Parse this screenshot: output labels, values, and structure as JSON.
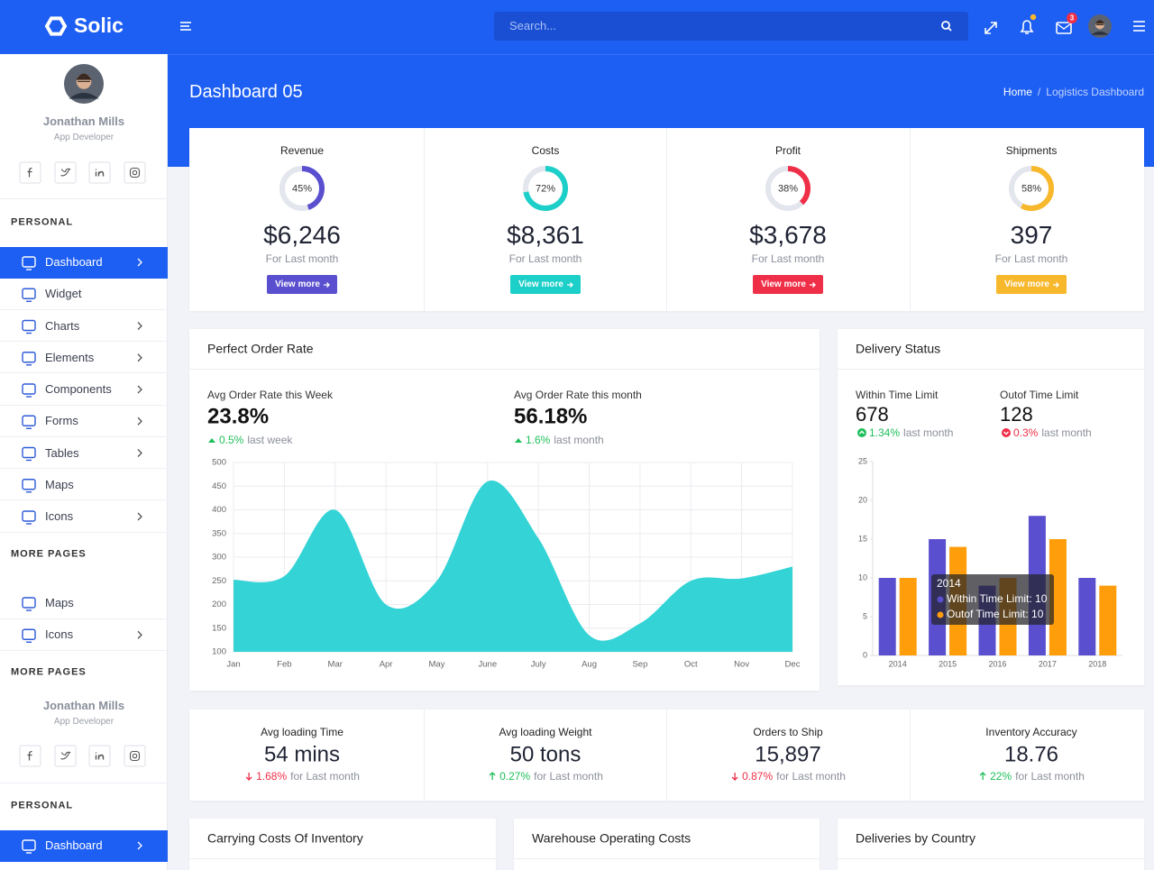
{
  "topbar": {
    "brand": "Solic",
    "search_placeholder": "Search...",
    "mail_badge": "3"
  },
  "sidebar": {
    "profile": {
      "name": "Jonathan Mills",
      "role": "App Developer"
    },
    "personal": {
      "heading": "PERSONAL",
      "items": [
        "Dashboard",
        "Widget",
        "Charts",
        "Elements",
        "Components",
        "Forms",
        "Tables",
        "Maps",
        "Icons"
      ]
    },
    "more_pages": {
      "heading": "MORE PAGES",
      "items": [
        "Maps",
        "Icons"
      ]
    },
    "more_pages_2": {
      "heading": "MORE PAGES"
    },
    "profile_2": {
      "name": "Jonathan Mills",
      "role": "App Developer"
    },
    "personal_2": {
      "heading": "PERSONAL",
      "items": [
        "Dashboard"
      ]
    }
  },
  "page_header": {
    "title": "Dashboard 05",
    "breadcrumb": [
      "Home",
      "Logistics Dashboard"
    ],
    "breadcrumb_separator": "/"
  },
  "kpis": [
    {
      "title": "Revenue",
      "percent": 45,
      "percent_label": "45%",
      "value": "$6,246",
      "caption": "For Last month",
      "button": "View more",
      "color": "#5a4fcf"
    },
    {
      "title": "Costs",
      "percent": 72,
      "percent_label": "72%",
      "value": "$8,361",
      "caption": "For Last month",
      "button": "View more",
      "color": "#1ccfc9"
    },
    {
      "title": "Profit",
      "percent": 38,
      "percent_label": "38%",
      "value": "$3,678",
      "caption": "For Last month",
      "button": "View more",
      "color": "#ef2f48"
    },
    {
      "title": "Shipments",
      "percent": 58,
      "percent_label": "58%",
      "value": "397",
      "caption": "For Last month",
      "button": "View more",
      "color": "#f8b82c"
    }
  ],
  "order_rate": {
    "title": "Perfect Order Rate",
    "stats": [
      {
        "label": "Avg Order Rate this Week",
        "value": "23.8%",
        "change": "0.5%",
        "change_caption": "last week",
        "direction": "up"
      },
      {
        "label": "Avg Order Rate this month",
        "value": "56.18%",
        "change": "1.6%",
        "change_caption": "last month",
        "direction": "up"
      }
    ],
    "chart": {
      "type": "area",
      "categories": [
        "Jan",
        "Feb",
        "Mar",
        "Apr",
        "May",
        "June",
        "July",
        "Aug",
        "Sep",
        "Oct",
        "Nov",
        "Dec"
      ],
      "values": [
        252,
        260,
        400,
        200,
        250,
        460,
        340,
        135,
        160,
        250,
        255,
        280
      ],
      "color": "#33d3d6",
      "ylim": [
        100,
        500
      ],
      "yticks": [
        100,
        150,
        200,
        250,
        300,
        350,
        400,
        450,
        500
      ],
      "grid": true
    }
  },
  "delivery": {
    "title": "Delivery Status",
    "stats": [
      {
        "label": "Within Time Limit",
        "value": "678",
        "change": "1.34%",
        "change_caption": "last month",
        "direction": "up"
      },
      {
        "label": "Outof Time Limit",
        "value": "128",
        "change": "0.3%",
        "change_caption": "last month",
        "direction": "down"
      }
    ],
    "chart": {
      "type": "bar",
      "categories": [
        "2014",
        "2015",
        "2016",
        "2017",
        "2018"
      ],
      "series": [
        {
          "color": "#5a4fcf",
          "values": [
            10,
            15,
            9,
            18,
            10
          ]
        },
        {
          "color": "#ff9d0a",
          "values": [
            10,
            14,
            10,
            15,
            9
          ]
        }
      ],
      "ylim": [
        0,
        25
      ],
      "yticks": [
        0,
        5,
        10,
        15,
        20,
        25
      ],
      "tooltip": {
        "lines": [
          "Within Time Limit: 10",
          "Outof Time Limit: 10"
        ]
      }
    }
  },
  "metrics": [
    {
      "title": "Avg loading Time",
      "value": "54 mins",
      "change": "1.68%",
      "caption": "for Last month",
      "direction": "down"
    },
    {
      "title": "Avg loading Weight",
      "value": "50 tons",
      "change": "0.27%",
      "caption": "for Last month",
      "direction": "up"
    },
    {
      "title": "Orders to Ship",
      "value": "15,897",
      "change": "0.87%",
      "caption": "for Last month",
      "direction": "down"
    },
    {
      "title": "Inventory Accuracy",
      "value": "18.76",
      "change": "22%",
      "caption": "for Last month",
      "direction": "up"
    }
  ],
  "panels": [
    "Carrying Costs Of Inventory",
    "Warehouse Operating Costs",
    "Deliveries by Country"
  ]
}
